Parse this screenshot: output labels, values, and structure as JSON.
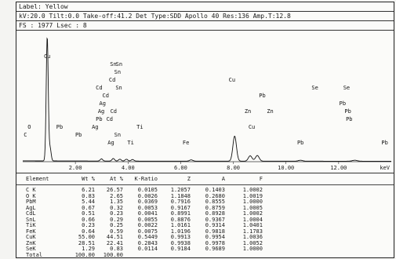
{
  "header": {
    "line1": "Label: Yellow",
    "line2": "kV:20.0 Tilt:0.0 Take-off:41.2   Det Type:SDD Apollo 40  Res:136  Amp.T:12.8",
    "line3": "FS : 1977  Lsec : 8"
  },
  "chart_data": {
    "type": "line",
    "title": "",
    "xlabel": "keV",
    "ylabel": "",
    "xlim": [
      0,
      14
    ],
    "ylim": [
      0,
      1977
    ],
    "x_ticks": [
      "2.00",
      "4.00",
      "6.00",
      "8.00",
      "10.00",
      "12.00"
    ],
    "x_tick_values": [
      2,
      4,
      6,
      8,
      10,
      12
    ],
    "series": [
      {
        "x": [
          0.93,
          1.04,
          2.99,
          3.44,
          3.69,
          3.94,
          4.17,
          6.4,
          8.05,
          8.64,
          8.91,
          10.55,
          12.61
        ],
        "values": [
          1977,
          200,
          35,
          40,
          30,
          30,
          25,
          20,
          400,
          85,
          90,
          15,
          15
        ]
      }
    ],
    "peak_labels": [
      {
        "text": "Cu",
        "x": 0.93,
        "level": 0
      },
      {
        "text": "Sn",
        "x": 3.44,
        "level": 1
      },
      {
        "text": "Sn",
        "x": 3.66,
        "level": 1
      },
      {
        "text": "Sn",
        "x": 3.6,
        "level": 2
      },
      {
        "text": "Cd",
        "x": 3.4,
        "level": 3
      },
      {
        "text": "Cd",
        "x": 2.9,
        "level": 4
      },
      {
        "text": "Sn",
        "x": 3.65,
        "level": 4
      },
      {
        "text": "Cd",
        "x": 3.15,
        "level": 5
      },
      {
        "text": "Ag",
        "x": 3.03,
        "level": 6
      },
      {
        "text": "Ag",
        "x": 2.98,
        "level": 7
      },
      {
        "text": "Cd",
        "x": 3.45,
        "level": 7
      },
      {
        "text": "Pb",
        "x": 2.9,
        "level": 8
      },
      {
        "text": "Cd",
        "x": 3.3,
        "level": 8
      },
      {
        "text": "Pb",
        "x": 1.4,
        "level": 9
      },
      {
        "text": "Ag",
        "x": 2.75,
        "level": 9
      },
      {
        "text": "Ti",
        "x": 4.45,
        "level": 9
      },
      {
        "text": "O",
        "x": 0.25,
        "level": 9
      },
      {
        "text": "Pb",
        "x": 2.12,
        "level": 10
      },
      {
        "text": "Sn",
        "x": 3.6,
        "level": 10
      },
      {
        "text": "Ag",
        "x": 3.35,
        "level": 11
      },
      {
        "text": "Ti",
        "x": 4.1,
        "level": 11
      },
      {
        "text": "Fe",
        "x": 6.2,
        "level": 11
      },
      {
        "text": "C",
        "x": 0.1,
        "level": 10
      },
      {
        "text": "Cu",
        "x": 7.95,
        "level": 3
      },
      {
        "text": "Pb",
        "x": 9.1,
        "level": 5
      },
      {
        "text": "Zn",
        "x": 8.55,
        "level": 7
      },
      {
        "text": "Zn",
        "x": 9.4,
        "level": 7
      },
      {
        "text": "Cu",
        "x": 8.7,
        "level": 9
      },
      {
        "text": "Se",
        "x": 11.1,
        "level": 4
      },
      {
        "text": "Se",
        "x": 12.3,
        "level": 4
      },
      {
        "text": "Pb",
        "x": 12.15,
        "level": 6
      },
      {
        "text": "Pb",
        "x": 12.35,
        "level": 7
      },
      {
        "text": "Pb",
        "x": 12.4,
        "level": 8
      },
      {
        "text": "Pb",
        "x": 10.55,
        "level": 11
      },
      {
        "text": "Pb",
        "x": 13.75,
        "level": 11
      }
    ]
  },
  "table": {
    "columns": [
      "Element",
      "Wt %",
      "At %",
      "K-Ratio",
      "Z",
      "A",
      "F"
    ],
    "rows": [
      [
        "C K",
        "6.21",
        "26.57",
        "0.0105",
        "1.2057",
        "0.1403",
        "1.0002"
      ],
      [
        "O K",
        "0.83",
        "2.65",
        "0.0026",
        "1.1848",
        "0.2680",
        "1.0019"
      ],
      [
        "PbM",
        "5.44",
        "1.35",
        "0.0369",
        "0.7916",
        "0.8555",
        "1.0000"
      ],
      [
        "AgL",
        "0.67",
        "0.32",
        "0.0053",
        "0.9167",
        "0.8759",
        "1.0005"
      ],
      [
        "CdL",
        "0.51",
        "0.23",
        "0.0041",
        "0.8991",
        "0.8928",
        "1.0002"
      ],
      [
        "SnL",
        "0.66",
        "0.29",
        "0.0055",
        "0.8876",
        "0.9367",
        "1.0004"
      ],
      [
        "TiK",
        "0.23",
        "0.25",
        "0.0022",
        "1.0161",
        "0.9314",
        "1.0401"
      ],
      [
        "FeK",
        "0.64",
        "0.59",
        "0.0075",
        "1.0196",
        "0.9818",
        "1.1783"
      ],
      [
        "CuK",
        "55.00",
        "44.51",
        "0.5449",
        "0.9913",
        "0.9954",
        "1.0036"
      ],
      [
        "ZnK",
        "28.51",
        "22.41",
        "0.2843",
        "0.9938",
        "0.9978",
        "1.0052"
      ],
      [
        "SeK",
        "1.29",
        "0.83",
        "0.0114",
        "0.9184",
        "0.9689",
        "1.0000"
      ],
      [
        "Total",
        "100.00",
        "100.00",
        "",
        "",
        "",
        ""
      ]
    ]
  }
}
